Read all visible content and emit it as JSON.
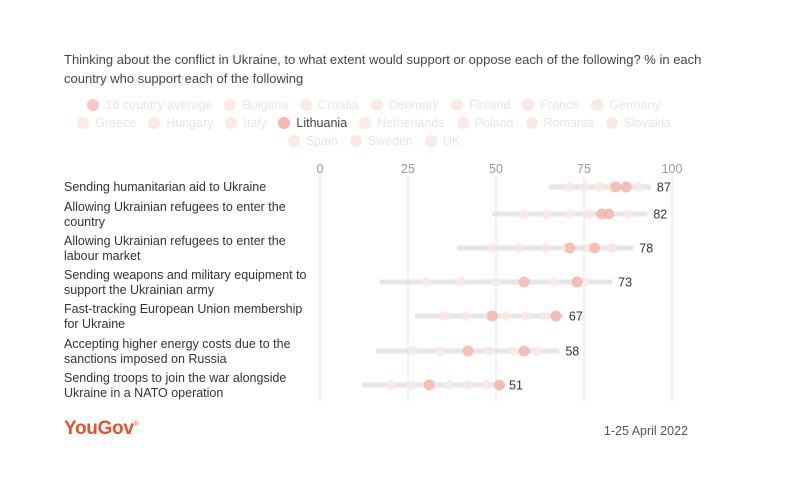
{
  "chart_data": {
    "type": "dot-range",
    "title": "Thinking about the conflict in Ukraine, to what extent would support or oppose each of the following? % in each country who support each of the following",
    "xlim": [
      0,
      100
    ],
    "x_ticks": [
      0,
      25,
      50,
      75,
      100
    ],
    "grid": true,
    "legend": {
      "placement": "top",
      "rows": [
        [
          "16 country average",
          "Bulgaria",
          "Croatia",
          "Denmark",
          "Finland",
          "France",
          "Germany"
        ],
        [
          "Greece",
          "Hungary",
          "Italy",
          "Lithuania",
          "Netherlands",
          "Poland",
          "Romania",
          "Slovakia"
        ],
        [
          "Spain",
          "Sweden",
          "UK"
        ]
      ],
      "highlighted": [
        "16 country average",
        "Lithuania"
      ]
    },
    "categories": [
      "Sending humanitarian aid to Ukraine",
      "Allowing Ukrainian refugees to enter the country",
      "Allowing Ukrainian refugees to enter the labour market",
      "Sending weapons and military equipment to support the Ukrainian army",
      "Fast-tracking European Union membership for Ukraine",
      "Accepting higher energy costs due to the sanctions imposed on Russia",
      "Sending troops to join the war alongside Ukraine in a NATO operation"
    ],
    "range": [
      [
        65,
        94
      ],
      [
        49,
        93
      ],
      [
        39,
        89
      ],
      [
        17,
        83
      ],
      [
        27,
        69
      ],
      [
        16,
        68
      ],
      [
        12,
        52
      ]
    ],
    "series": [
      {
        "name": "16 country average",
        "values": [
          84,
          80,
          71,
          58,
          49,
          42,
          31
        ]
      },
      {
        "name": "Lithuania",
        "values": [
          87,
          82,
          78,
          73,
          67,
          58,
          51
        ]
      }
    ],
    "value_labels": [
      "87",
      "82",
      "78",
      "73",
      "67",
      "58",
      "51"
    ]
  },
  "footer": {
    "brand": "YouGov",
    "date": "1-25 April 2022"
  },
  "colors": {
    "dot": "#f4b8ad",
    "range": "#e6e6e6",
    "grid": "#e3e3e3",
    "brand": "#e4542b"
  }
}
